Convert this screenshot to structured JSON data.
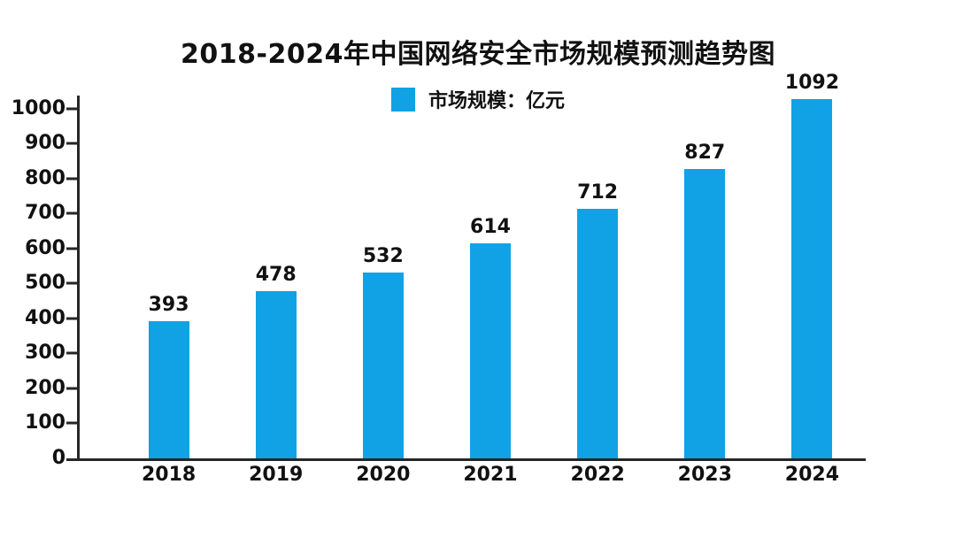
{
  "colors": {
    "bar": "#10a2e5",
    "axis": "#262626",
    "text": "#111111",
    "background": "#ffffff"
  },
  "chart_data": {
    "type": "bar",
    "title": "2018-2024年中国网络安全市场规模预测趋势图",
    "legend_label": "市场规模：亿元",
    "categories": [
      "2018",
      "2019",
      "2020",
      "2021",
      "2022",
      "2023",
      "2024"
    ],
    "values": [
      393,
      478,
      532,
      614,
      712,
      827,
      1092
    ],
    "xlabel": "",
    "ylabel": "",
    "ylim": [
      0,
      1100
    ],
    "ytick_step": 100,
    "ytick_max": 1000,
    "show_data_labels": true,
    "grid": false,
    "legend_position": "top-center"
  }
}
